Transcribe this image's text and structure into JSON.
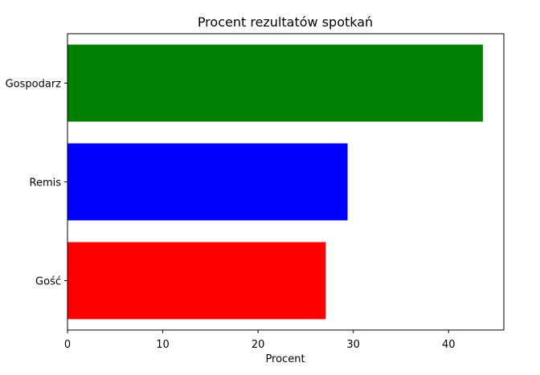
{
  "chart_data": {
    "type": "bar",
    "orientation": "horizontal",
    "title": "Procent rezultatów spotkań",
    "xlabel": "Procent",
    "ylabel": "",
    "categories": [
      "Gość",
      "Remis",
      "Gospodarz"
    ],
    "values": [
      27.1,
      29.4,
      43.6
    ],
    "colors": [
      "#ff0000",
      "#0000ff",
      "#008000"
    ],
    "xlim": [
      0,
      45.8
    ],
    "xticks": [
      0,
      10,
      20,
      30,
      40
    ],
    "xtick_labels": [
      "0",
      "10",
      "20",
      "30",
      "40"
    ],
    "grid": false
  }
}
